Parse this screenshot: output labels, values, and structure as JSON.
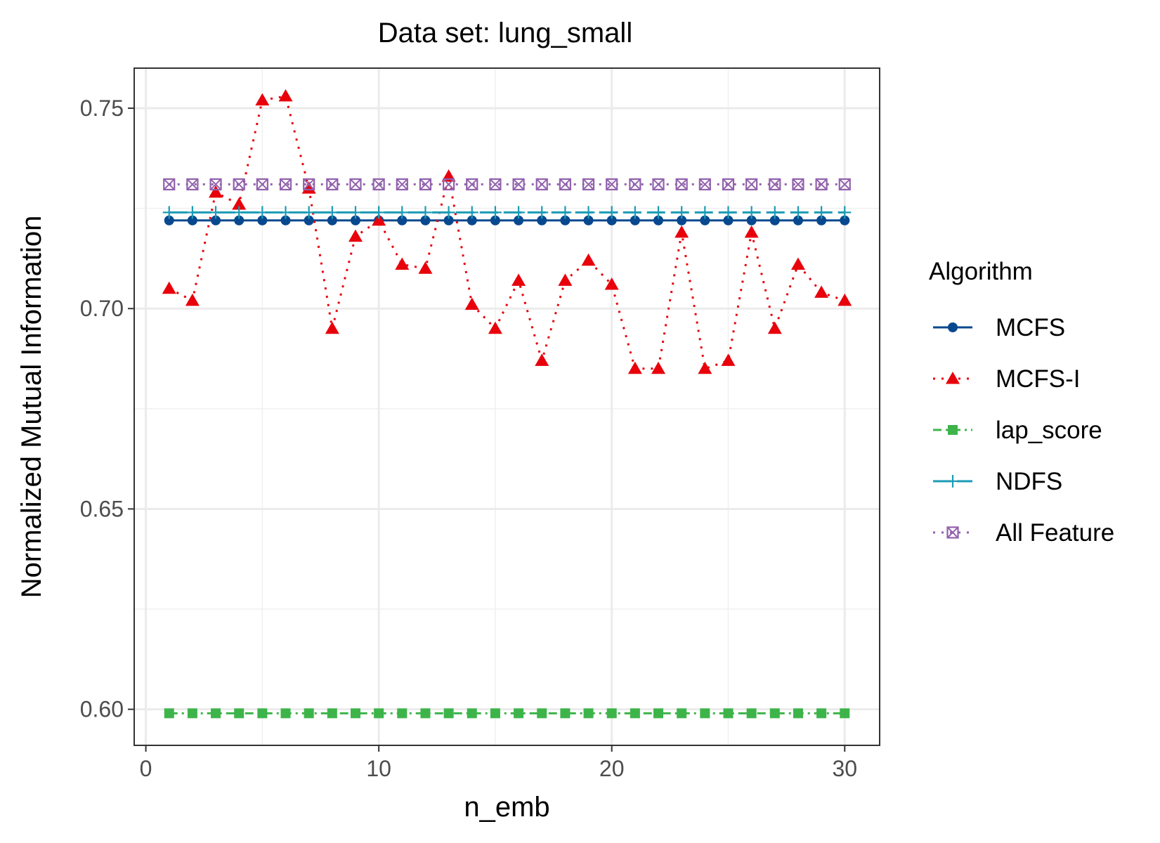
{
  "chart_data": {
    "type": "line",
    "title": "Data set: lung_small",
    "xlabel": "n_emb",
    "ylabel": "Normalized Mutual Information",
    "xlim": [
      -0.5,
      31.5
    ],
    "ylim": [
      0.591,
      0.76
    ],
    "x_ticks": [
      0,
      10,
      20,
      30
    ],
    "x_tick_labels": [
      "0",
      "10",
      "20",
      "30"
    ],
    "y_ticks": [
      0.6,
      0.65,
      0.7,
      0.75
    ],
    "y_tick_labels": [
      "0.60",
      "0.65",
      "0.70",
      "0.75"
    ],
    "grid": true,
    "legend": {
      "title": "Algorithm",
      "position": "right"
    },
    "x": [
      1,
      2,
      3,
      4,
      5,
      6,
      7,
      8,
      9,
      10,
      11,
      12,
      13,
      14,
      15,
      16,
      17,
      18,
      19,
      20,
      21,
      22,
      23,
      24,
      25,
      26,
      27,
      28,
      29,
      30
    ],
    "series": [
      {
        "name": "MCFS",
        "color": "#08488e",
        "line": "solid",
        "marker": "circle",
        "values": [
          0.722,
          0.722,
          0.722,
          0.722,
          0.722,
          0.722,
          0.722,
          0.722,
          0.722,
          0.722,
          0.722,
          0.722,
          0.722,
          0.722,
          0.722,
          0.722,
          0.722,
          0.722,
          0.722,
          0.722,
          0.722,
          0.722,
          0.722,
          0.722,
          0.722,
          0.722,
          0.722,
          0.722,
          0.722,
          0.722
        ]
      },
      {
        "name": "MCFS-I",
        "color": "#e8000b",
        "line": "dotted",
        "marker": "triangle",
        "values": [
          0.705,
          0.702,
          0.729,
          0.726,
          0.752,
          0.753,
          0.73,
          0.695,
          0.718,
          0.722,
          0.711,
          0.71,
          0.733,
          0.701,
          0.695,
          0.707,
          0.687,
          0.707,
          0.712,
          0.706,
          0.685,
          0.685,
          0.719,
          0.685,
          0.687,
          0.719,
          0.695,
          0.711,
          0.704,
          0.702
        ]
      },
      {
        "name": "lap_score",
        "color": "#3db44a",
        "line": "dashdot",
        "marker": "square",
        "values": [
          0.599,
          0.599,
          0.599,
          0.599,
          0.599,
          0.599,
          0.599,
          0.599,
          0.599,
          0.599,
          0.599,
          0.599,
          0.599,
          0.599,
          0.599,
          0.599,
          0.599,
          0.599,
          0.599,
          0.599,
          0.599,
          0.599,
          0.599,
          0.599,
          0.599,
          0.599,
          0.599,
          0.599,
          0.599,
          0.599
        ]
      },
      {
        "name": "NDFS",
        "color": "#1b9bb5",
        "line": "longdash",
        "marker": "plus",
        "values": [
          0.724,
          0.724,
          0.724,
          0.724,
          0.724,
          0.724,
          0.724,
          0.724,
          0.724,
          0.724,
          0.724,
          0.724,
          0.724,
          0.724,
          0.724,
          0.724,
          0.724,
          0.724,
          0.724,
          0.724,
          0.724,
          0.724,
          0.724,
          0.724,
          0.724,
          0.724,
          0.724,
          0.724,
          0.724,
          0.724
        ]
      },
      {
        "name": "All Feature",
        "color": "#9262ad",
        "line": "dotted",
        "marker": "boxcross",
        "values": [
          0.731,
          0.731,
          0.731,
          0.731,
          0.731,
          0.731,
          0.731,
          0.731,
          0.731,
          0.731,
          0.731,
          0.731,
          0.731,
          0.731,
          0.731,
          0.731,
          0.731,
          0.731,
          0.731,
          0.731,
          0.731,
          0.731,
          0.731,
          0.731,
          0.731,
          0.731,
          0.731,
          0.731,
          0.731,
          0.731
        ]
      }
    ]
  }
}
